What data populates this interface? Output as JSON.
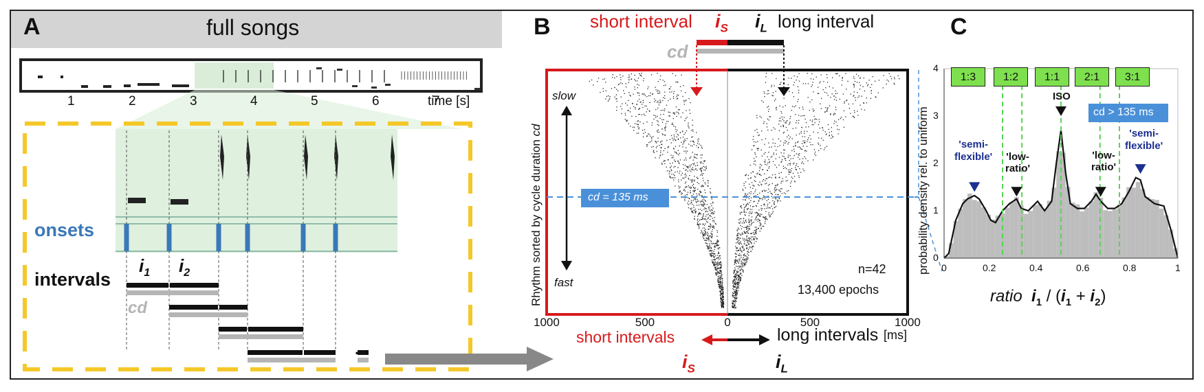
{
  "panelA": {
    "letter": "A",
    "title": "full songs",
    "time_ticks": [
      "1",
      "2",
      "3",
      "4",
      "5",
      "6",
      "7"
    ],
    "time_unit": "time [s]",
    "onsets_label": "onsets",
    "intervals_label": "intervals",
    "i1": "i",
    "i1_sub": "1",
    "i2": "i",
    "i2_sub": "2",
    "cd_label": "cd",
    "ellipsis": "..."
  },
  "panelB": {
    "letter": "B",
    "short_interval": "short interval",
    "long_interval": "long interval",
    "is_symbol": "i",
    "is_sub": "S",
    "il_symbol": "i",
    "il_sub": "L",
    "cd_label": "cd",
    "ylabel_main": "Rhythm sorted by cycle duration ",
    "ylabel_cd": "cd",
    "slow": "slow",
    "fast": "fast",
    "cd_threshold": "cd = 135 ms",
    "n_text": "n=42",
    "epochs_text": "13,400 epochs",
    "x_ticks": [
      "1000",
      "500",
      "0",
      "500",
      "1000"
    ],
    "short_intervals": "short intervals",
    "long_intervals": "long intervals",
    "x_unit": "[ms]",
    "colors": {
      "short": "#d7191c",
      "long": "#111111",
      "cd_gray": "#b5b5b5",
      "threshold": "#4a90d9"
    }
  },
  "panelC": {
    "letter": "C",
    "ratio_boxes": [
      "1:3",
      "1:2",
      "1:1",
      "2:1",
      "3:1"
    ],
    "iso_label": "ISO",
    "semi_flexible_left": [
      "'semi-",
      "flexible'"
    ],
    "low_ratio_left": [
      "'low-",
      "ratio'"
    ],
    "low_ratio_right": [
      "'low-",
      "ratio'"
    ],
    "semi_flexible_right": [
      "'semi-",
      "flexible'"
    ],
    "cd_condition": "cd > 135 ms",
    "ylabel": "probability density rel. to uniform",
    "y_ticks": [
      "0",
      "1",
      "2",
      "3",
      "4"
    ],
    "x_ticks": [
      "0",
      "0.2",
      "0.4",
      "0.6",
      "0.8",
      "1"
    ],
    "xlabel_ratio": "ratio",
    "xlabel_formula": [
      "i",
      "1",
      " / (",
      "i",
      "1",
      " + ",
      "i",
      "2",
      ")"
    ]
  },
  "chart_data": {
    "type": "area",
    "title": "",
    "xlabel": "ratio i1 / (i1 + i2)",
    "ylabel": "probability density rel. to uniform",
    "xlim": [
      0,
      1
    ],
    "ylim": [
      0,
      4
    ],
    "grid": false,
    "x": [
      0.0,
      0.02,
      0.05,
      0.08,
      0.1,
      0.13,
      0.15,
      0.18,
      0.2,
      0.22,
      0.25,
      0.28,
      0.31,
      0.33,
      0.36,
      0.4,
      0.43,
      0.46,
      0.48,
      0.5,
      0.52,
      0.54,
      0.57,
      0.6,
      0.63,
      0.65,
      0.67,
      0.7,
      0.73,
      0.76,
      0.79,
      0.82,
      0.84,
      0.86,
      0.9,
      0.94,
      0.97,
      1.0
    ],
    "series": [
      {
        "values": [
          0.0,
          0.1,
          0.8,
          1.15,
          1.25,
          1.32,
          1.25,
          1.0,
          0.8,
          0.75,
          1.0,
          1.15,
          1.25,
          1.05,
          1.0,
          1.2,
          1.0,
          1.2,
          2.0,
          2.7,
          1.8,
          1.15,
          1.05,
          1.05,
          1.2,
          1.35,
          1.2,
          1.05,
          1.05,
          1.15,
          1.4,
          1.7,
          1.65,
          1.3,
          1.15,
          1.1,
          0.6,
          0.0
        ]
      }
    ],
    "vlines": [
      0.25,
      0.333,
      0.5,
      0.667,
      0.75
    ]
  }
}
